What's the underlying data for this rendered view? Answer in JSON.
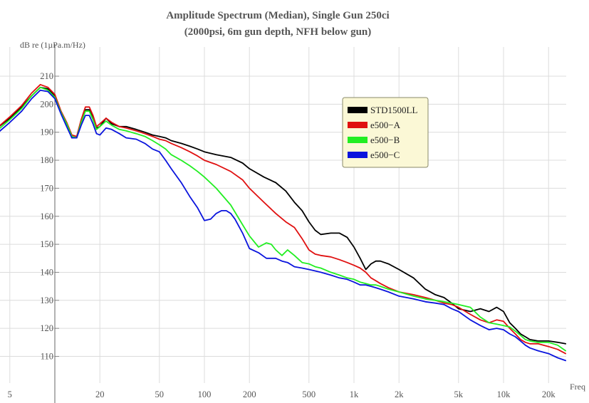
{
  "chart_data": {
    "type": "line",
    "title": "Amplitude Spectrum (Median), Single Gun 250ci",
    "subtitle": "(2000psi, 6m gun depth, NFH below gun)",
    "ylabel": "dB re (1µPa.m/Hz)",
    "xlabel": "Freq",
    "x_scale": "log",
    "xlim": [
      4,
      26000
    ],
    "ylim": [
      103,
      216
    ],
    "grid": true,
    "legend_position": "top-right",
    "y_ticks": [
      110,
      120,
      130,
      140,
      150,
      160,
      170,
      180,
      190,
      200,
      210
    ],
    "x_ticks": [
      {
        "value": 5,
        "label": "5"
      },
      {
        "value": 20,
        "label": "20"
      },
      {
        "value": 50,
        "label": "50"
      },
      {
        "value": 100,
        "label": "100"
      },
      {
        "value": 200,
        "label": "200"
      },
      {
        "value": 500,
        "label": "500"
      },
      {
        "value": 1000,
        "label": "1k"
      },
      {
        "value": 2000,
        "label": "2k"
      },
      {
        "value": 5000,
        "label": "5k"
      },
      {
        "value": 10000,
        "label": "10k"
      },
      {
        "value": 20000,
        "label": "20k"
      }
    ],
    "series": [
      {
        "name": "STD1500LL",
        "color": "#000000",
        "x": [
          4,
          5,
          6,
          7,
          8,
          9,
          10,
          11,
          12,
          13,
          14,
          15,
          16,
          17,
          18,
          19,
          20,
          22,
          24,
          27,
          30,
          35,
          40,
          45,
          50,
          55,
          60,
          70,
          80,
          90,
          100,
          120,
          150,
          180,
          200,
          250,
          300,
          350,
          400,
          450,
          500,
          550,
          600,
          700,
          800,
          900,
          1000,
          1100,
          1200,
          1300,
          1400,
          1500,
          1700,
          2000,
          2500,
          3000,
          3500,
          4000,
          4500,
          5000,
          6000,
          7000,
          8000,
          9000,
          10000,
          11000,
          12000,
          13000,
          14000,
          15000,
          17000,
          20000,
          23000,
          26000
        ],
        "y": [
          191,
          195,
          199,
          203,
          206,
          205.5,
          203,
          197,
          193,
          188,
          188,
          194,
          198,
          198,
          195,
          191.5,
          192,
          195,
          193,
          192,
          192,
          191,
          190,
          189,
          188.5,
          188,
          187,
          186,
          185,
          184,
          183,
          182,
          181,
          179,
          177,
          174,
          172,
          169,
          165,
          162,
          158,
          155,
          153.5,
          154,
          154,
          152.5,
          149,
          145,
          141,
          143,
          144,
          144,
          143,
          141,
          138,
          134,
          132,
          131,
          129,
          127,
          126,
          127,
          126,
          127.5,
          126,
          122,
          120,
          118,
          117,
          116,
          115.5,
          115.5,
          115,
          114.5
        ]
      },
      {
        "name": "e500−A",
        "color": "#e01010",
        "x": [
          4,
          5,
          6,
          7,
          8,
          9,
          10,
          11,
          12,
          13,
          14,
          15,
          16,
          17,
          18,
          19,
          20,
          22,
          24,
          27,
          30,
          35,
          40,
          45,
          50,
          55,
          60,
          70,
          80,
          90,
          100,
          120,
          150,
          180,
          200,
          250,
          300,
          350,
          400,
          450,
          500,
          550,
          600,
          700,
          800,
          900,
          1000,
          1100,
          1200,
          1300,
          1400,
          1500,
          1700,
          2000,
          2500,
          3000,
          3500,
          4000,
          4500,
          5000,
          6000,
          7000,
          8000,
          9000,
          10000,
          11000,
          12000,
          13000,
          14000,
          15000,
          17000,
          20000,
          23000,
          26000
        ],
        "y": [
          191,
          195.5,
          199.5,
          204,
          207,
          206,
          203.5,
          197.5,
          193.5,
          189,
          188.5,
          194.5,
          199,
          199,
          196,
          192,
          193,
          195,
          193.5,
          192,
          191.5,
          190.5,
          189.5,
          188.5,
          187.5,
          187,
          186,
          184.5,
          183,
          181.5,
          180,
          178.5,
          176,
          173,
          170,
          165,
          161,
          158,
          156,
          152,
          148,
          146.5,
          146,
          145.5,
          144.5,
          143.5,
          142.5,
          141.5,
          140,
          138,
          137,
          136,
          134.5,
          133,
          132,
          131,
          130,
          129,
          128.5,
          127.5,
          125,
          123,
          122,
          123,
          122.5,
          120,
          118,
          116,
          115,
          114.5,
          114.5,
          113.5,
          112.5,
          111
        ]
      },
      {
        "name": "e500−B",
        "color": "#22ee22",
        "x": [
          4,
          5,
          6,
          7,
          8,
          9,
          10,
          11,
          12,
          13,
          14,
          15,
          16,
          17,
          18,
          19,
          20,
          22,
          24,
          27,
          30,
          35,
          40,
          45,
          50,
          55,
          60,
          70,
          80,
          90,
          100,
          120,
          150,
          180,
          200,
          230,
          260,
          280,
          300,
          330,
          360,
          400,
          450,
          500,
          550,
          600,
          700,
          800,
          900,
          1000,
          1100,
          1200,
          1300,
          1400,
          1500,
          1700,
          2000,
          2500,
          3000,
          3500,
          4000,
          4500,
          5000,
          6000,
          7000,
          8000,
          9000,
          10000,
          11000,
          12000,
          13000,
          14000,
          15000,
          17000,
          20000,
          23000,
          26000
        ],
        "y": [
          190,
          194.5,
          198.5,
          203,
          206,
          205,
          202.5,
          197,
          193,
          188.5,
          188,
          193.5,
          197.5,
          197.5,
          194.5,
          191,
          192,
          194,
          192.5,
          191,
          190.5,
          189.5,
          188.5,
          187,
          185.5,
          184,
          182,
          180,
          178,
          176,
          174,
          170,
          164,
          157,
          153,
          149,
          150.5,
          150,
          148,
          146,
          148,
          146,
          143.5,
          143,
          142,
          141.5,
          140,
          139,
          138,
          137.5,
          136.5,
          136,
          135.5,
          135.5,
          135,
          134,
          133,
          131.5,
          130.5,
          130,
          129.5,
          129,
          128.5,
          127.5,
          124,
          122,
          121.5,
          121,
          120.5,
          119,
          117.5,
          116,
          115.5,
          115,
          115,
          114,
          112
        ]
      },
      {
        "name": "e500−C",
        "color": "#0a14dd",
        "x": [
          4,
          5,
          6,
          7,
          8,
          9,
          10,
          11,
          12,
          13,
          14,
          15,
          16,
          17,
          18,
          19,
          20,
          22,
          24,
          27,
          30,
          35,
          40,
          45,
          50,
          55,
          60,
          70,
          80,
          90,
          100,
          110,
          120,
          130,
          140,
          150,
          160,
          180,
          200,
          230,
          260,
          300,
          330,
          360,
          400,
          450,
          500,
          550,
          600,
          700,
          800,
          900,
          1000,
          1100,
          1200,
          1300,
          1400,
          1500,
          1700,
          2000,
          2500,
          3000,
          3500,
          4000,
          4500,
          5000,
          6000,
          7000,
          8000,
          9000,
          10000,
          11000,
          12000,
          13000,
          14000,
          15000,
          17000,
          20000,
          23000,
          26000
        ],
        "y": [
          189,
          193.5,
          197.5,
          202,
          205,
          204.5,
          202,
          196.5,
          192,
          188,
          188,
          192.5,
          196,
          196,
          193,
          189.5,
          189,
          191.5,
          191,
          189.5,
          188,
          187.5,
          186,
          184,
          183,
          180,
          177,
          172,
          167,
          163,
          158.5,
          159,
          161,
          162,
          162,
          161,
          159,
          154,
          148.5,
          147,
          145,
          145,
          144,
          143.5,
          142,
          141.5,
          141,
          140.5,
          140,
          139,
          138,
          137.5,
          136.5,
          135.5,
          135.5,
          135,
          134.5,
          134,
          133,
          131.5,
          130.5,
          129.5,
          129,
          128.5,
          127,
          126,
          123,
          121,
          119.5,
          120,
          119.5,
          118,
          117,
          115.5,
          114,
          113,
          112,
          111,
          109.5,
          108.5
        ]
      }
    ]
  }
}
